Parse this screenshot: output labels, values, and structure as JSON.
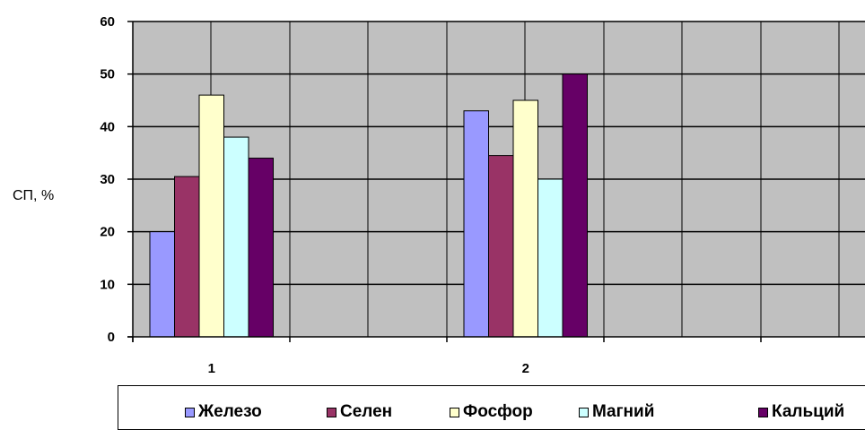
{
  "chart_data": {
    "type": "bar",
    "title": "",
    "xlabel": "",
    "ylabel": "СП, %",
    "ylim": [
      0,
      60
    ],
    "yticks": [
      0,
      10,
      20,
      30,
      40,
      50,
      60
    ],
    "categories": [
      "1",
      "2"
    ],
    "grid": true,
    "legend_position": "bottom",
    "series": [
      {
        "name": "Железо",
        "color": "#9999ff",
        "values": [
          20,
          43
        ]
      },
      {
        "name": "Селен",
        "color": "#993366",
        "values": [
          30.5,
          34.5
        ]
      },
      {
        "name": "Фосфор",
        "color": "#ffffcc",
        "values": [
          46,
          45
        ]
      },
      {
        "name": "Магний",
        "color": "#ccffff",
        "values": [
          38,
          30
        ]
      },
      {
        "name": "Кальций",
        "color": "#660066",
        "values": [
          34,
          50
        ]
      }
    ],
    "plot_background": "#c0c0c0"
  }
}
